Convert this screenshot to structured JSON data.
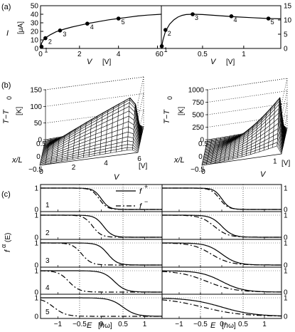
{
  "panels": {
    "a": "(a)",
    "b": "(b)",
    "c": "(c)"
  },
  "panel_a": {
    "ylabel_left": "I",
    "yunit_left": "[μA]",
    "xlabel": "V",
    "xunit": "[V]",
    "left_yticks": [
      "0",
      "10",
      "20",
      "30",
      "40",
      "50"
    ],
    "right_yticks": [
      "0",
      "5",
      "10",
      "15"
    ],
    "left_xticks": [
      "0",
      "2",
      "4",
      "6"
    ],
    "right_xticks": [
      "0",
      "0.5",
      "1"
    ],
    "left_point_labels": [
      "1",
      "2",
      "3",
      "4",
      "5"
    ],
    "right_point_labels": [
      "1",
      "2",
      "3",
      "4",
      "5"
    ]
  },
  "panel_b": {
    "zlabel": "T−T",
    "zsub": "0",
    "zunit": "[K]",
    "xlabel": "x/L",
    "vlabel": "V",
    "vunit": "[V]",
    "left_zticks": [
      "0",
      "50",
      "100",
      "150"
    ],
    "right_zticks": [
      "0",
      "250",
      "500",
      "750",
      "1000"
    ],
    "x_ticks": [
      "0.5",
      "0",
      "−0.5"
    ],
    "left_vticks": [
      "0",
      "2",
      "4",
      "6"
    ],
    "right_vticks": [
      "0",
      "1"
    ]
  },
  "panel_c": {
    "ylabel": "f",
    "ysup": "α",
    "yarg": "(E)",
    "xlabel": "E",
    "xunit": "[ℏω]",
    "legend_plus": "f",
    "legend_plus_sup": "+",
    "legend_minus": "f",
    "legend_minus_sup": "−",
    "row_labels": [
      "1",
      "2",
      "3",
      "4",
      "5"
    ],
    "left_xticks": [
      "−1",
      "−0.5",
      "0",
      "0.5",
      "1"
    ],
    "right_xticks": [
      "−1",
      "−0.5",
      "0",
      "0.5",
      "1"
    ],
    "yticks": [
      "0",
      "1"
    ]
  },
  "chart_data": [
    {
      "type": "line",
      "panel": "a-left",
      "xlabel": "V [V]",
      "ylabel": "I [μA]",
      "xlim": [
        0,
        6.2
      ],
      "ylim": [
        0,
        50
      ],
      "x": [
        0,
        0.05,
        0.15,
        0.3,
        0.5,
        0.8,
        1.2,
        1.6,
        2.0,
        2.5,
        3.0,
        3.5,
        4.0,
        4.5,
        5.0,
        5.5,
        6.2
      ],
      "y": [
        0,
        6,
        10,
        13,
        16,
        19.5,
        22.5,
        25,
        27,
        29.5,
        31.5,
        33.5,
        35,
        36.5,
        38,
        39,
        40
      ],
      "points": [
        {
          "label": "1",
          "x": 0.05,
          "y": 2
        },
        {
          "label": "2",
          "x": 0.25,
          "y": 12
        },
        {
          "label": "3",
          "x": 1.0,
          "y": 21
        },
        {
          "label": "4",
          "x": 2.4,
          "y": 29
        },
        {
          "label": "5",
          "x": 4.0,
          "y": 35
        }
      ]
    },
    {
      "type": "line",
      "panel": "a-right",
      "xlabel": "V [V]",
      "ylabel": "",
      "xlim": [
        0,
        1.45
      ],
      "ylim": [
        0,
        15
      ],
      "x": [
        0,
        0.02,
        0.05,
        0.1,
        0.15,
        0.2,
        0.25,
        0.3,
        0.38,
        0.5,
        0.7,
        0.9,
        1.1,
        1.3,
        1.45
      ],
      "y": [
        0,
        3,
        6,
        8.5,
        10,
        11,
        11.6,
        11.9,
        12,
        11.9,
        11.5,
        11.1,
        10.8,
        10.5,
        10.4
      ],
      "points": [
        {
          "label": "1",
          "x": 0.005,
          "y": 0.8
        },
        {
          "label": "2",
          "x": 0.05,
          "y": 6.5
        },
        {
          "label": "3",
          "x": 0.38,
          "y": 12
        },
        {
          "label": "4",
          "x": 0.85,
          "y": 11.3
        },
        {
          "label": "5",
          "x": 1.3,
          "y": 10.5
        }
      ]
    },
    {
      "type": "line",
      "panel": "c",
      "xlabel": "E [ℏω]",
      "ylabel": "fα(E)",
      "xlim": [
        -1.4,
        1.4
      ],
      "ylim": [
        0,
        1
      ],
      "series": [
        {
          "name": "f+",
          "rows": [
            {
              "mu": 0.0,
              "kT": 0.09,
              "right_mu": 0.0,
              "right_kT": 0.09
            },
            {
              "mu": 0.05,
              "kT": 0.1,
              "right_mu": 0.0,
              "right_kT": 0.13
            },
            {
              "mu": 0.15,
              "kT": 0.11,
              "right_mu": 0.0,
              "right_kT": 0.18
            },
            {
              "mu": 0.3,
              "kT": 0.13,
              "right_mu": 0.0,
              "right_kT": 0.25
            },
            {
              "mu": 0.5,
              "kT": 0.15,
              "right_mu": 0.0,
              "right_kT": 0.38
            }
          ]
        },
        {
          "name": "f−",
          "rows": [
            {
              "mu": -0.05,
              "kT": 0.09,
              "right_mu": -0.05,
              "right_kT": 0.1
            },
            {
              "mu": -0.2,
              "kT": 0.1,
              "right_mu": -0.18,
              "right_kT": 0.16
            },
            {
              "mu": -0.45,
              "kT": 0.11,
              "right_mu": -0.25,
              "right_kT": 0.22
            },
            {
              "mu": -0.75,
              "kT": 0.12,
              "right_mu": -0.35,
              "right_kT": 0.32
            },
            {
              "mu": -1.1,
              "kT": 0.14,
              "right_mu": -0.45,
              "right_kT": 0.45
            }
          ]
        }
      ]
    }
  ]
}
